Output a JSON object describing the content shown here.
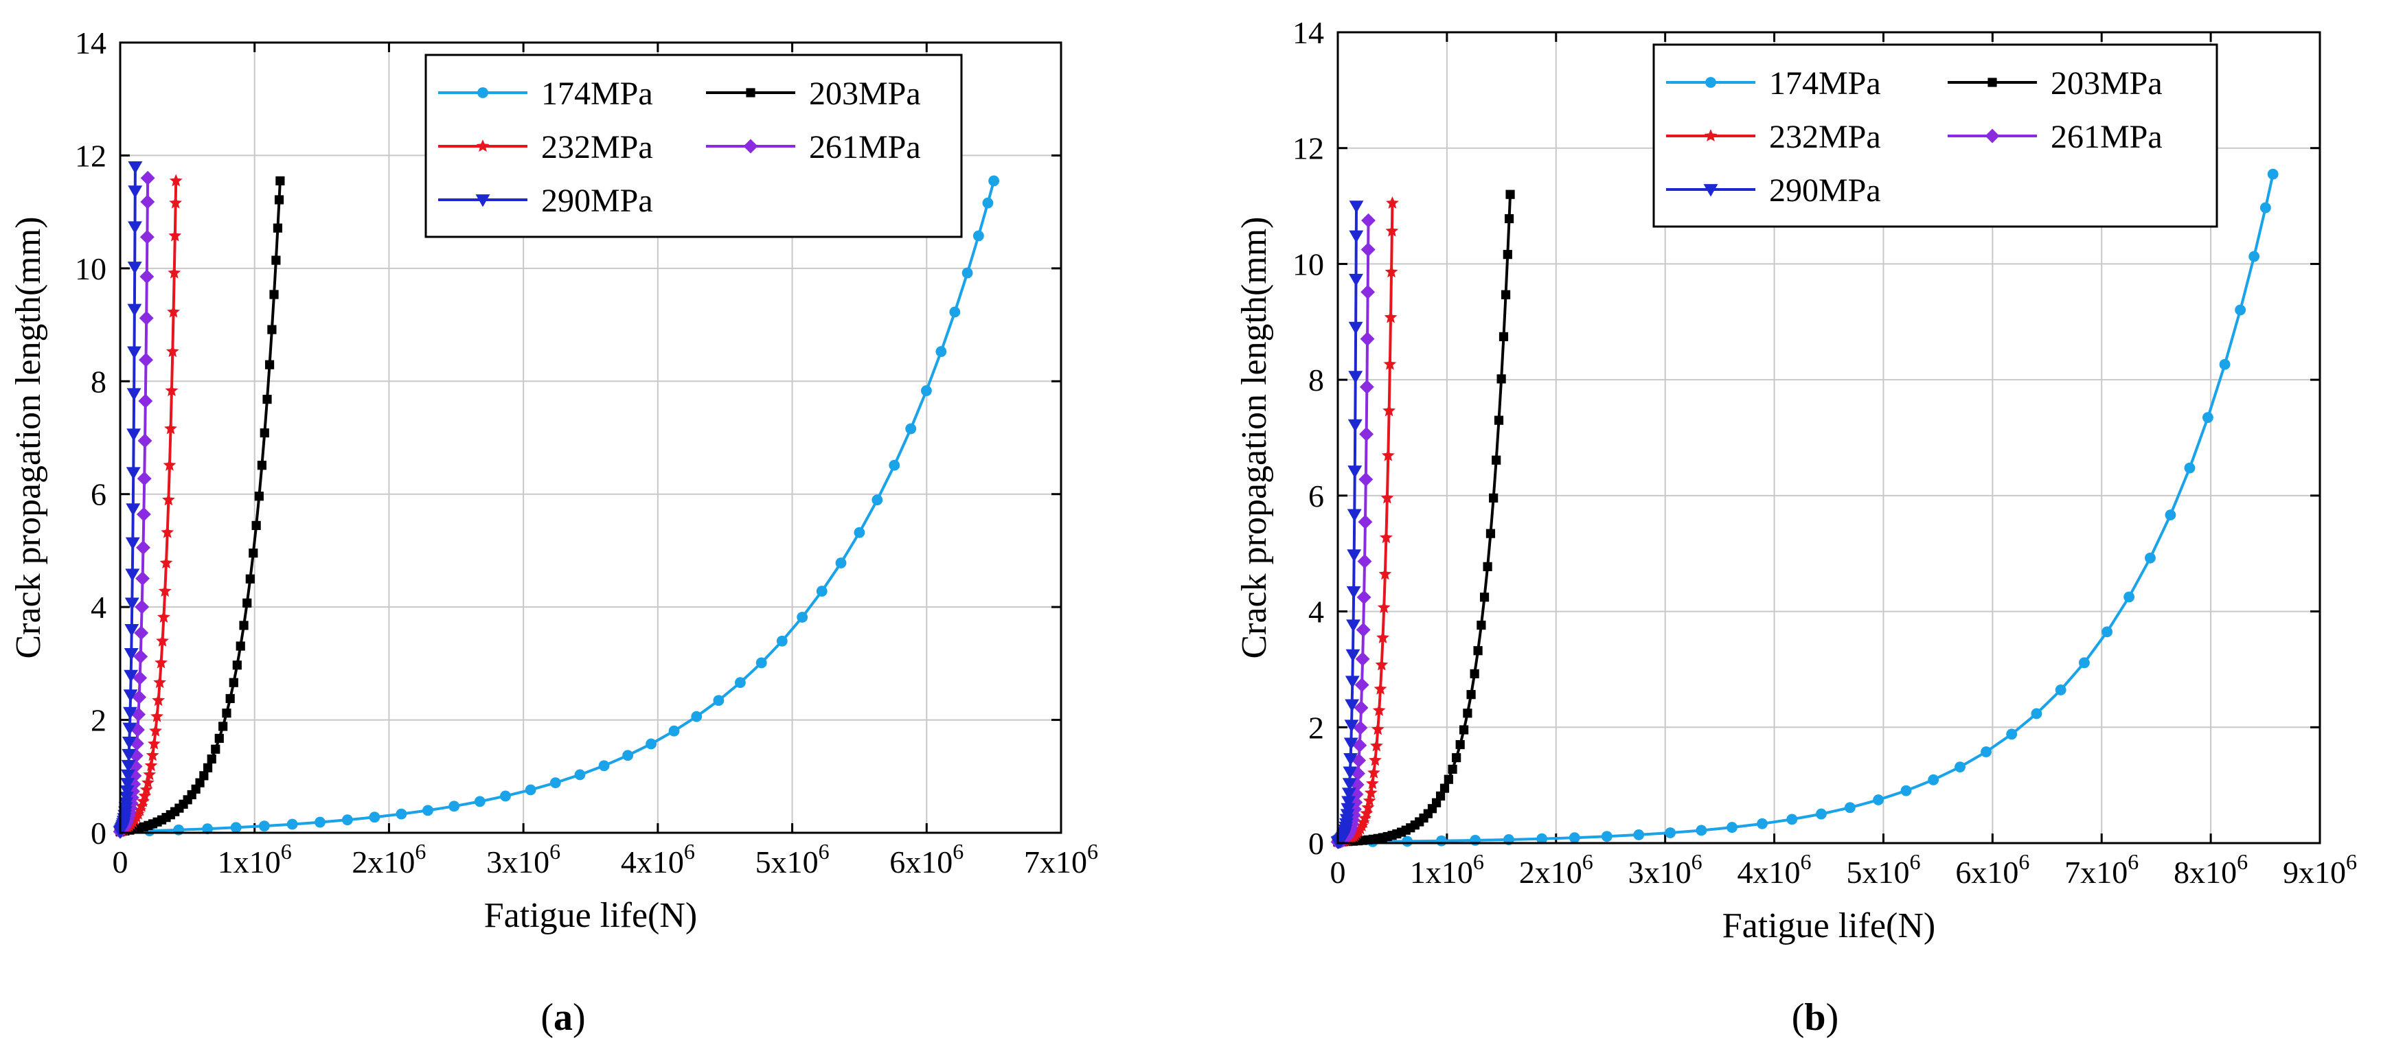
{
  "panels": [
    {
      "label": "(a)",
      "label_letter": "a",
      "chart_data": {
        "type": "line",
        "title": "",
        "xlabel": "Fatigue life(N)",
        "ylabel": "Crack propagation length(mm)",
        "xlim": [
          0,
          7000000
        ],
        "ylim": [
          0,
          14
        ],
        "xticks": [
          0,
          1000000,
          2000000,
          3000000,
          4000000,
          5000000,
          6000000,
          7000000
        ],
        "xtick_labels": [
          {
            "base": "0",
            "exp": ""
          },
          {
            "base": "1x10",
            "exp": "6"
          },
          {
            "base": "2x10",
            "exp": "6"
          },
          {
            "base": "3x10",
            "exp": "6"
          },
          {
            "base": "4x10",
            "exp": "6"
          },
          {
            "base": "5x10",
            "exp": "6"
          },
          {
            "base": "6x10",
            "exp": "6"
          },
          {
            "base": "7x10",
            "exp": "6"
          }
        ],
        "yticks": [
          0,
          2,
          4,
          6,
          8,
          10,
          12,
          14
        ],
        "ytick_labels": [
          "0",
          "2",
          "4",
          "6",
          "8",
          "10",
          "12",
          "14"
        ],
        "grid": true,
        "legend_position": "top-right",
        "series": [
          {
            "name": "174MPa",
            "color": "#1aa3e8",
            "marker": "circle",
            "nf": 6500000,
            "a0": 0.02,
            "af": 11.55,
            "shape": 5.0,
            "samples": 40
          },
          {
            "name": "203MPa",
            "color": "#000000",
            "marker": "square",
            "nf": 1190000,
            "a0": 0.02,
            "af": 11.55,
            "shape": 5.0,
            "samples": 45
          },
          {
            "name": "232MPa",
            "color": "#e8141e",
            "marker": "star",
            "nf": 415000,
            "a0": 0.02,
            "af": 11.55,
            "shape": 5.0,
            "samples": 40
          },
          {
            "name": "261MPa",
            "color": "#8a2be2",
            "marker": "diamond",
            "nf": 205000,
            "a0": 0.02,
            "af": 11.6,
            "shape": 5.0,
            "samples": 38
          },
          {
            "name": "290MPa",
            "color": "#1e28d2",
            "marker": "triangle-down",
            "nf": 112000,
            "a0": 0.02,
            "af": 11.8,
            "shape": 5.0,
            "samples": 38
          }
        ]
      }
    },
    {
      "label": "(b)",
      "label_letter": "b",
      "chart_data": {
        "type": "line",
        "title": "",
        "xlabel": "Fatigue life(N)",
        "ylabel": "Crack propagation length(mm)",
        "xlim": [
          0,
          9000000
        ],
        "ylim": [
          0,
          14
        ],
        "xticks": [
          0,
          1000000,
          2000000,
          3000000,
          4000000,
          5000000,
          6000000,
          7000000,
          8000000,
          9000000
        ],
        "xtick_labels": [
          {
            "base": "0",
            "exp": ""
          },
          {
            "base": "1x10",
            "exp": "6"
          },
          {
            "base": "2x10",
            "exp": "6"
          },
          {
            "base": "3x10",
            "exp": "6"
          },
          {
            "base": "4x10",
            "exp": "6"
          },
          {
            "base": "5x10",
            "exp": "6"
          },
          {
            "base": "6x10",
            "exp": "6"
          },
          {
            "base": "7x10",
            "exp": "6"
          },
          {
            "base": "8x10",
            "exp": "6"
          },
          {
            "base": "9x10",
            "exp": "6"
          }
        ],
        "yticks": [
          0,
          2,
          4,
          6,
          8,
          10,
          12,
          14
        ],
        "ytick_labels": [
          "0",
          "2",
          "4",
          "6",
          "8",
          "10",
          "12",
          "14"
        ],
        "grid": true,
        "legend_position": "top-right",
        "series": [
          {
            "name": "174MPa",
            "color": "#1aa3e8",
            "marker": "circle",
            "nf": 8570000,
            "a0": 0.02,
            "af": 11.55,
            "shape": 6.5,
            "samples": 36
          },
          {
            "name": "203MPa",
            "color": "#000000",
            "marker": "square",
            "nf": 1580000,
            "a0": 0.02,
            "af": 11.2,
            "shape": 6.5,
            "samples": 45
          },
          {
            "name": "232MPa",
            "color": "#e8141e",
            "marker": "star",
            "nf": 500000,
            "a0": 0.02,
            "af": 11.05,
            "shape": 6.5,
            "samples": 40
          },
          {
            "name": "261MPa",
            "color": "#8a2be2",
            "marker": "diamond",
            "nf": 280000,
            "a0": 0.02,
            "af": 10.75,
            "shape": 6.5,
            "samples": 38
          },
          {
            "name": "290MPa",
            "color": "#1e28d2",
            "marker": "triangle-down",
            "nf": 170000,
            "a0": 0.02,
            "af": 11.0,
            "shape": 6.5,
            "samples": 38
          }
        ]
      }
    }
  ]
}
